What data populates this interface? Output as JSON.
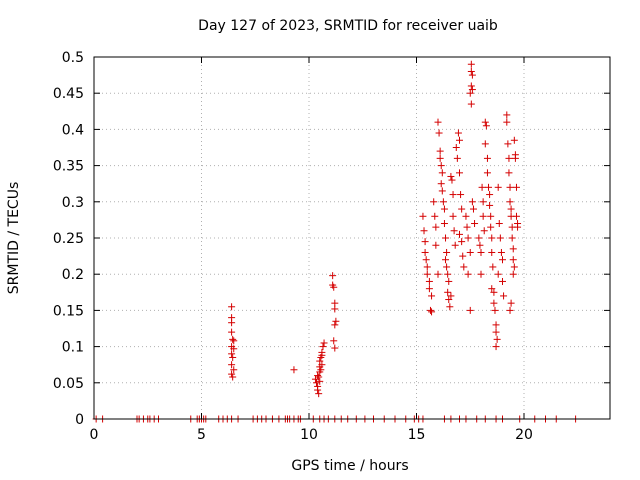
{
  "chart_data": {
    "type": "scatter",
    "title": "Day 127 of 2023, SRMTID for receiver uaib",
    "xlabel": "GPS time / hours",
    "ylabel": "SRMTID / TECUs",
    "xlim": [
      0,
      24
    ],
    "ylim": [
      0,
      0.5
    ],
    "xticks": [
      0,
      5,
      10,
      15,
      20
    ],
    "xtick_labels": [
      "0",
      "5",
      "10",
      "15",
      "20"
    ],
    "yticks": [
      0,
      0.05,
      0.1,
      0.15,
      0.2,
      0.25,
      0.3,
      0.35,
      0.4,
      0.45,
      0.5
    ],
    "ytick_labels": [
      "0",
      "0.05",
      "0.1",
      "0.15",
      "0.2",
      "0.25",
      "0.3",
      "0.35",
      "0.4",
      "0.45",
      "0.5"
    ],
    "grid": true,
    "marker": "+",
    "color": "#d40000",
    "series": [
      {
        "name": "SRMTID",
        "points": [
          [
            0.1,
            0
          ],
          [
            0.4,
            0
          ],
          [
            2.0,
            0
          ],
          [
            2.1,
            0
          ],
          [
            2.3,
            0
          ],
          [
            2.5,
            0
          ],
          [
            2.6,
            0
          ],
          [
            2.8,
            0
          ],
          [
            3.0,
            0
          ],
          [
            4.5,
            0
          ],
          [
            4.8,
            0
          ],
          [
            4.9,
            0
          ],
          [
            5.0,
            0
          ],
          [
            5.1,
            0
          ],
          [
            5.2,
            0
          ],
          [
            5.8,
            0
          ],
          [
            6.0,
            0
          ],
          [
            6.2,
            0
          ],
          [
            6.4,
            0
          ],
          [
            6.7,
            0
          ],
          [
            7.4,
            0
          ],
          [
            7.6,
            0
          ],
          [
            7.8,
            0
          ],
          [
            8.0,
            0
          ],
          [
            8.3,
            0
          ],
          [
            8.6,
            0
          ],
          [
            8.9,
            0
          ],
          [
            9.0,
            0
          ],
          [
            9.1,
            0
          ],
          [
            9.3,
            0
          ],
          [
            9.5,
            0
          ],
          [
            9.6,
            0
          ],
          [
            10.2,
            0
          ],
          [
            10.5,
            0
          ],
          [
            10.7,
            0
          ],
          [
            10.9,
            0
          ],
          [
            11.2,
            0
          ],
          [
            11.5,
            0
          ],
          [
            11.8,
            0
          ],
          [
            12.2,
            0
          ],
          [
            12.6,
            0
          ],
          [
            13.0,
            0
          ],
          [
            13.5,
            0
          ],
          [
            14.0,
            0
          ],
          [
            14.5,
            0
          ],
          [
            14.9,
            0
          ],
          [
            15.1,
            0
          ],
          [
            15.3,
            0
          ],
          [
            16.3,
            0
          ],
          [
            16.6,
            0
          ],
          [
            17.0,
            0
          ],
          [
            17.3,
            0
          ],
          [
            17.8,
            0
          ],
          [
            18.2,
            0
          ],
          [
            18.7,
            0
          ],
          [
            19.0,
            0
          ],
          [
            19.8,
            0
          ],
          [
            20.5,
            0
          ],
          [
            21.0,
            0
          ],
          [
            21.5,
            0
          ],
          [
            22.4,
            0
          ],
          [
            6.4,
            0.155
          ],
          [
            6.4,
            0.14
          ],
          [
            6.4,
            0.133
          ],
          [
            6.4,
            0.12
          ],
          [
            6.45,
            0.11
          ],
          [
            6.5,
            0.108
          ],
          [
            6.4,
            0.1
          ],
          [
            6.5,
            0.097
          ],
          [
            6.4,
            0.09
          ],
          [
            6.45,
            0.085
          ],
          [
            6.4,
            0.075
          ],
          [
            6.5,
            0.068
          ],
          [
            6.4,
            0.062
          ],
          [
            6.45,
            0.058
          ],
          [
            9.3,
            0.068
          ],
          [
            10.3,
            0.055
          ],
          [
            10.35,
            0.05
          ],
          [
            10.4,
            0.045
          ],
          [
            10.4,
            0.04
          ],
          [
            10.45,
            0.058
          ],
          [
            10.5,
            0.065
          ],
          [
            10.5,
            0.072
          ],
          [
            10.5,
            0.08
          ],
          [
            10.55,
            0.085
          ],
          [
            10.6,
            0.088
          ],
          [
            10.6,
            0.092
          ],
          [
            10.65,
            0.1
          ],
          [
            10.7,
            0.105
          ],
          [
            10.6,
            0.075
          ],
          [
            10.55,
            0.068
          ],
          [
            10.4,
            0.06
          ],
          [
            10.5,
            0.052
          ],
          [
            10.45,
            0.035
          ],
          [
            11.1,
            0.198
          ],
          [
            11.1,
            0.185
          ],
          [
            11.15,
            0.182
          ],
          [
            11.2,
            0.16
          ],
          [
            11.2,
            0.152
          ],
          [
            11.25,
            0.135
          ],
          [
            11.2,
            0.13
          ],
          [
            11.15,
            0.108
          ],
          [
            11.2,
            0.098
          ],
          [
            15.3,
            0.28
          ],
          [
            15.35,
            0.26
          ],
          [
            15.4,
            0.245
          ],
          [
            15.4,
            0.23
          ],
          [
            15.45,
            0.22
          ],
          [
            15.5,
            0.21
          ],
          [
            15.5,
            0.2
          ],
          [
            15.6,
            0.19
          ],
          [
            15.6,
            0.18
          ],
          [
            15.7,
            0.17
          ],
          [
            15.65,
            0.15
          ],
          [
            15.7,
            0.148
          ],
          [
            15.8,
            0.3
          ],
          [
            15.85,
            0.28
          ],
          [
            15.9,
            0.265
          ],
          [
            15.9,
            0.24
          ],
          [
            16.0,
            0.2
          ],
          [
            16.0,
            0.41
          ],
          [
            16.05,
            0.395
          ],
          [
            16.1,
            0.37
          ],
          [
            16.1,
            0.36
          ],
          [
            16.15,
            0.35
          ],
          [
            16.2,
            0.34
          ],
          [
            16.15,
            0.325
          ],
          [
            16.2,
            0.315
          ],
          [
            16.25,
            0.3
          ],
          [
            16.3,
            0.29
          ],
          [
            16.3,
            0.27
          ],
          [
            16.35,
            0.25
          ],
          [
            16.4,
            0.23
          ],
          [
            16.35,
            0.22
          ],
          [
            16.4,
            0.21
          ],
          [
            16.45,
            0.2
          ],
          [
            16.5,
            0.19
          ],
          [
            16.45,
            0.175
          ],
          [
            16.5,
            0.165
          ],
          [
            16.55,
            0.155
          ],
          [
            16.6,
            0.17
          ],
          [
            16.6,
            0.335
          ],
          [
            16.65,
            0.33
          ],
          [
            16.7,
            0.31
          ],
          [
            16.7,
            0.28
          ],
          [
            16.75,
            0.26
          ],
          [
            16.8,
            0.24
          ],
          [
            16.85,
            0.375
          ],
          [
            16.9,
            0.36
          ],
          [
            16.95,
            0.395
          ],
          [
            17.0,
            0.385
          ],
          [
            17.0,
            0.34
          ],
          [
            17.05,
            0.31
          ],
          [
            17.1,
            0.29
          ],
          [
            17.0,
            0.255
          ],
          [
            17.1,
            0.245
          ],
          [
            17.15,
            0.225
          ],
          [
            17.2,
            0.21
          ],
          [
            17.3,
            0.28
          ],
          [
            17.35,
            0.265
          ],
          [
            17.4,
            0.25
          ],
          [
            17.5,
            0.23
          ],
          [
            17.4,
            0.2
          ],
          [
            17.5,
            0.15
          ],
          [
            17.55,
            0.49
          ],
          [
            17.55,
            0.48
          ],
          [
            17.6,
            0.475
          ],
          [
            17.55,
            0.46
          ],
          [
            17.6,
            0.455
          ],
          [
            17.5,
            0.45
          ],
          [
            17.55,
            0.435
          ],
          [
            17.6,
            0.3
          ],
          [
            17.65,
            0.29
          ],
          [
            17.7,
            0.27
          ],
          [
            17.9,
            0.25
          ],
          [
            17.95,
            0.24
          ],
          [
            18.0,
            0.23
          ],
          [
            18.0,
            0.2
          ],
          [
            18.05,
            0.32
          ],
          [
            18.1,
            0.3
          ],
          [
            18.1,
            0.28
          ],
          [
            18.15,
            0.26
          ],
          [
            18.2,
            0.41
          ],
          [
            18.25,
            0.405
          ],
          [
            18.2,
            0.38
          ],
          [
            18.3,
            0.36
          ],
          [
            18.3,
            0.34
          ],
          [
            18.35,
            0.32
          ],
          [
            18.4,
            0.31
          ],
          [
            18.4,
            0.295
          ],
          [
            18.45,
            0.28
          ],
          [
            18.45,
            0.265
          ],
          [
            18.5,
            0.25
          ],
          [
            18.5,
            0.23
          ],
          [
            18.55,
            0.21
          ],
          [
            18.5,
            0.18
          ],
          [
            18.6,
            0.175
          ],
          [
            18.6,
            0.16
          ],
          [
            18.65,
            0.15
          ],
          [
            18.7,
            0.13
          ],
          [
            18.7,
            0.12
          ],
          [
            18.75,
            0.11
          ],
          [
            18.7,
            0.1
          ],
          [
            18.8,
            0.2
          ],
          [
            18.8,
            0.32
          ],
          [
            18.85,
            0.27
          ],
          [
            18.9,
            0.25
          ],
          [
            18.95,
            0.23
          ],
          [
            19.0,
            0.22
          ],
          [
            19.0,
            0.19
          ],
          [
            19.05,
            0.17
          ],
          [
            19.2,
            0.42
          ],
          [
            19.2,
            0.41
          ],
          [
            19.25,
            0.38
          ],
          [
            19.3,
            0.36
          ],
          [
            19.3,
            0.34
          ],
          [
            19.35,
            0.32
          ],
          [
            19.35,
            0.3
          ],
          [
            19.4,
            0.29
          ],
          [
            19.4,
            0.28
          ],
          [
            19.45,
            0.265
          ],
          [
            19.45,
            0.25
          ],
          [
            19.5,
            0.235
          ],
          [
            19.5,
            0.22
          ],
          [
            19.55,
            0.21
          ],
          [
            19.5,
            0.2
          ],
          [
            19.4,
            0.16
          ],
          [
            19.35,
            0.15
          ],
          [
            19.55,
            0.385
          ],
          [
            19.6,
            0.365
          ],
          [
            19.6,
            0.36
          ],
          [
            19.65,
            0.32
          ],
          [
            19.65,
            0.28
          ],
          [
            19.7,
            0.27
          ],
          [
            19.7,
            0.265
          ]
        ]
      }
    ]
  }
}
